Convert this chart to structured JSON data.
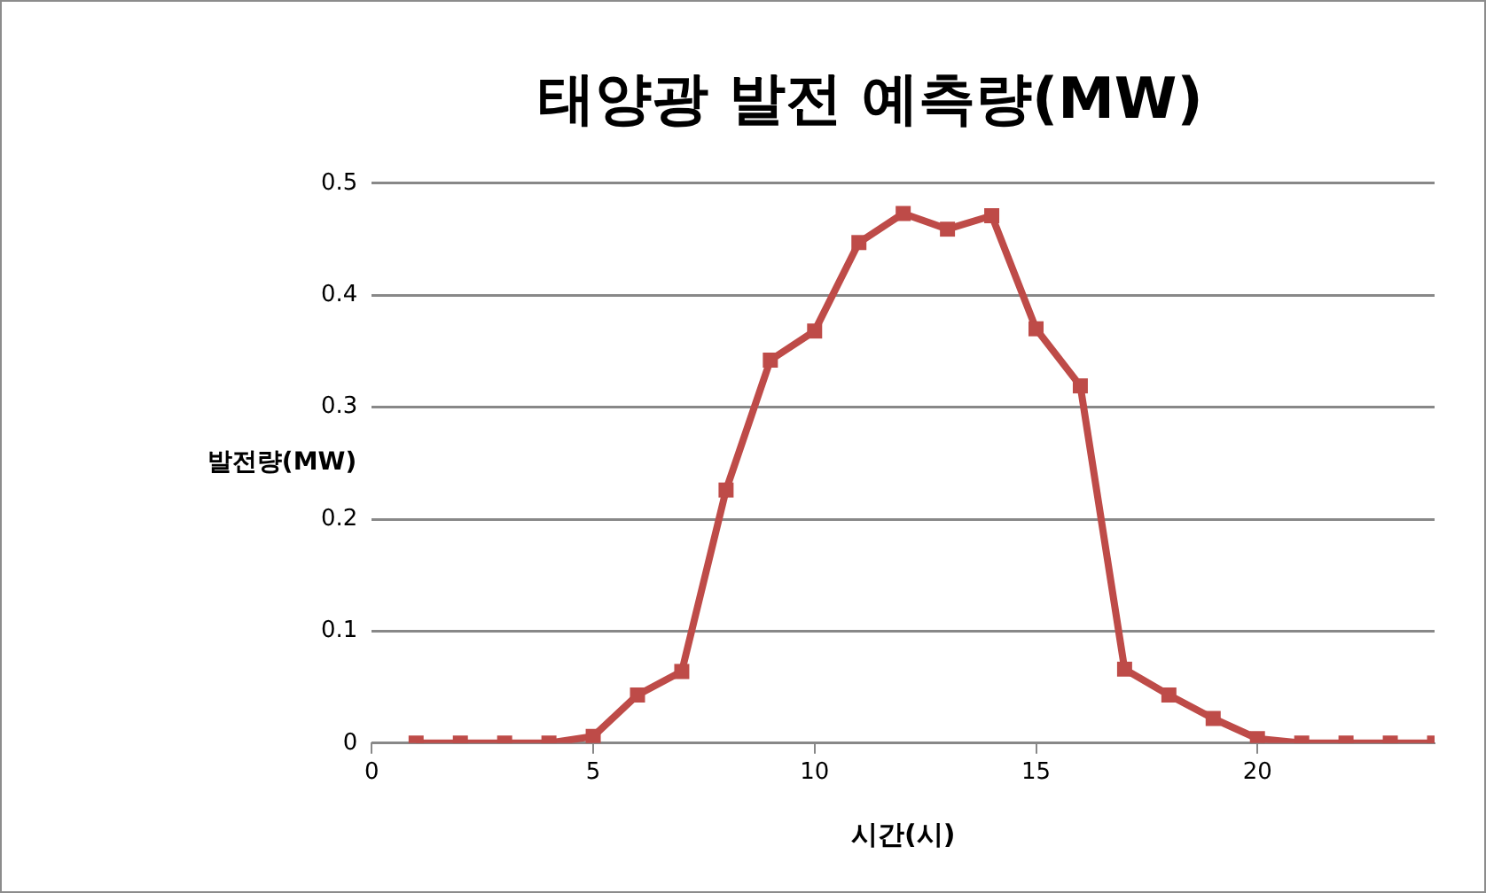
{
  "chart_data": {
    "type": "line",
    "title": "태양광 발전 예측량(MW)",
    "xlabel": "시간(시)",
    "ylabel": "발전량(MW)",
    "x": [
      1,
      2,
      3,
      4,
      5,
      6,
      7,
      8,
      9,
      10,
      11,
      12,
      13,
      14,
      15,
      16,
      17,
      18,
      19,
      20,
      21,
      22,
      23,
      24
    ],
    "series": [
      {
        "color": "#be4b48",
        "values": [
          0,
          0,
          0,
          0,
          0.006,
          0.043,
          0.064,
          0.226,
          0.342,
          0.368,
          0.447,
          0.473,
          0.459,
          0.471,
          0.37,
          0.319,
          0.066,
          0.043,
          0.022,
          0.004,
          0,
          0,
          0,
          0
        ]
      }
    ],
    "xlim": [
      0,
      24
    ],
    "xticks": [
      0,
      5,
      10,
      15,
      20
    ],
    "ylim": [
      0,
      0.5
    ],
    "yticks": [
      0,
      0.1,
      0.2,
      0.3,
      0.4,
      0.5
    ],
    "grid": "y",
    "legend": false,
    "marker": "square",
    "line_style": "solid"
  }
}
